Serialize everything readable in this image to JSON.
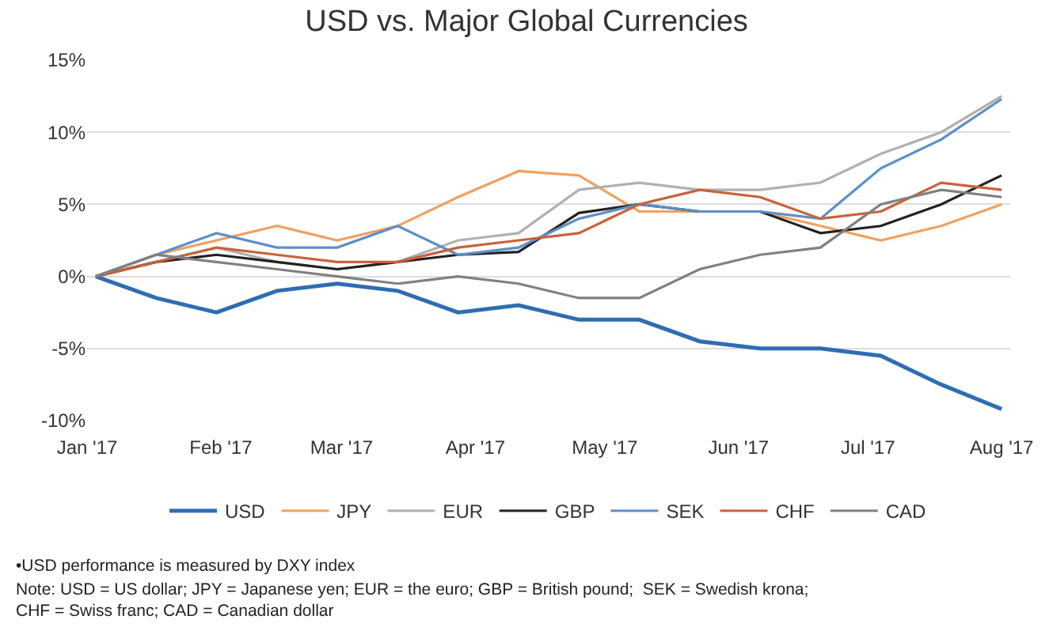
{
  "chart_data": {
    "type": "line",
    "title": "USD vs. Major Global Currencies",
    "x": [
      "2017-01-03",
      "2017-01-17",
      "2017-01-31",
      "2017-02-14",
      "2017-02-28",
      "2017-03-14",
      "2017-03-28",
      "2017-04-11",
      "2017-04-25",
      "2017-05-09",
      "2017-05-23",
      "2017-06-06",
      "2017-06-20",
      "2017-07-04",
      "2017-07-18",
      "2017-08-01"
    ],
    "series": [
      {
        "name": "USD",
        "color": "#2e6db4",
        "values": [
          0,
          -1.5,
          -2.5,
          -1,
          -0.5,
          -1,
          -2.5,
          -2,
          -3,
          -3,
          -4.5,
          -5,
          -5,
          -5.5,
          -7.5,
          -9.2
        ]
      },
      {
        "name": "JPY",
        "color": "#f0a060",
        "values": [
          0,
          1.5,
          2.5,
          3.5,
          2.5,
          3.5,
          5.5,
          7.3,
          7,
          4.5,
          4.5,
          4.5,
          3.5,
          2.5,
          3.5,
          5
        ]
      },
      {
        "name": "EUR",
        "color": "#b0b0b0",
        "values": [
          0,
          1,
          2,
          1,
          0.5,
          1,
          2.5,
          3,
          6,
          6.5,
          6,
          6,
          6.5,
          8.5,
          10,
          12.5
        ]
      },
      {
        "name": "GBP",
        "color": "#222222",
        "values": [
          0,
          1,
          1.5,
          1,
          0.5,
          1,
          1.5,
          1.7,
          4.4,
          5,
          4.5,
          4.5,
          3,
          3.5,
          5,
          7
        ]
      },
      {
        "name": "SEK",
        "color": "#5b8fc9",
        "values": [
          0,
          1.5,
          3,
          2,
          2,
          3.5,
          1.5,
          2,
          4,
          5,
          4.5,
          4.5,
          4,
          7.5,
          9.5,
          12.3
        ]
      },
      {
        "name": "CHF",
        "color": "#c8623a",
        "values": [
          0,
          1,
          2,
          1.5,
          1,
          1,
          2,
          2.5,
          3,
          5,
          6,
          5.5,
          4,
          4.5,
          6.5,
          6
        ]
      },
      {
        "name": "CAD",
        "color": "#808080",
        "values": [
          0,
          1.5,
          1,
          0.5,
          0,
          -0.5,
          0,
          -0.5,
          -1.5,
          -1.5,
          0.5,
          1.5,
          2,
          5,
          6,
          5.5
        ]
      }
    ],
    "xlim": [
      "2017-01-01",
      "2017-08-03"
    ],
    "xticks": [
      {
        "value": "2017-01-01",
        "label": "Jan '17"
      },
      {
        "value": "2017-02-01",
        "label": "Feb '17"
      },
      {
        "value": "2017-03-01",
        "label": "Mar '17"
      },
      {
        "value": "2017-04-01",
        "label": "Apr '17"
      },
      {
        "value": "2017-05-01",
        "label": "May '17"
      },
      {
        "value": "2017-06-01",
        "label": "Jun '17"
      },
      {
        "value": "2017-07-01",
        "label": "Jul '17"
      },
      {
        "value": "2017-08-01",
        "label": "Aug '17"
      }
    ],
    "ylim": [
      -10,
      15
    ],
    "yticks": [
      {
        "value": -10,
        "label": "-10%"
      },
      {
        "value": -5,
        "label": "-5%"
      },
      {
        "value": 0,
        "label": "0%"
      },
      {
        "value": 5,
        "label": "5%"
      },
      {
        "value": 10,
        "label": "10%"
      },
      {
        "value": 15,
        "label": "15%"
      }
    ],
    "grid": "y",
    "legend": "bottom",
    "marker": "none",
    "line_style": "solid",
    "annotations": [
      "•USD performance is measured by DXY index",
      "Note: USD = US dollar; JPY = Japanese yen; EUR = the euro; GBP = British pound;  SEK = Swedish krona;\nCHF = Swiss franc; CAD = Canadian dollar"
    ]
  }
}
